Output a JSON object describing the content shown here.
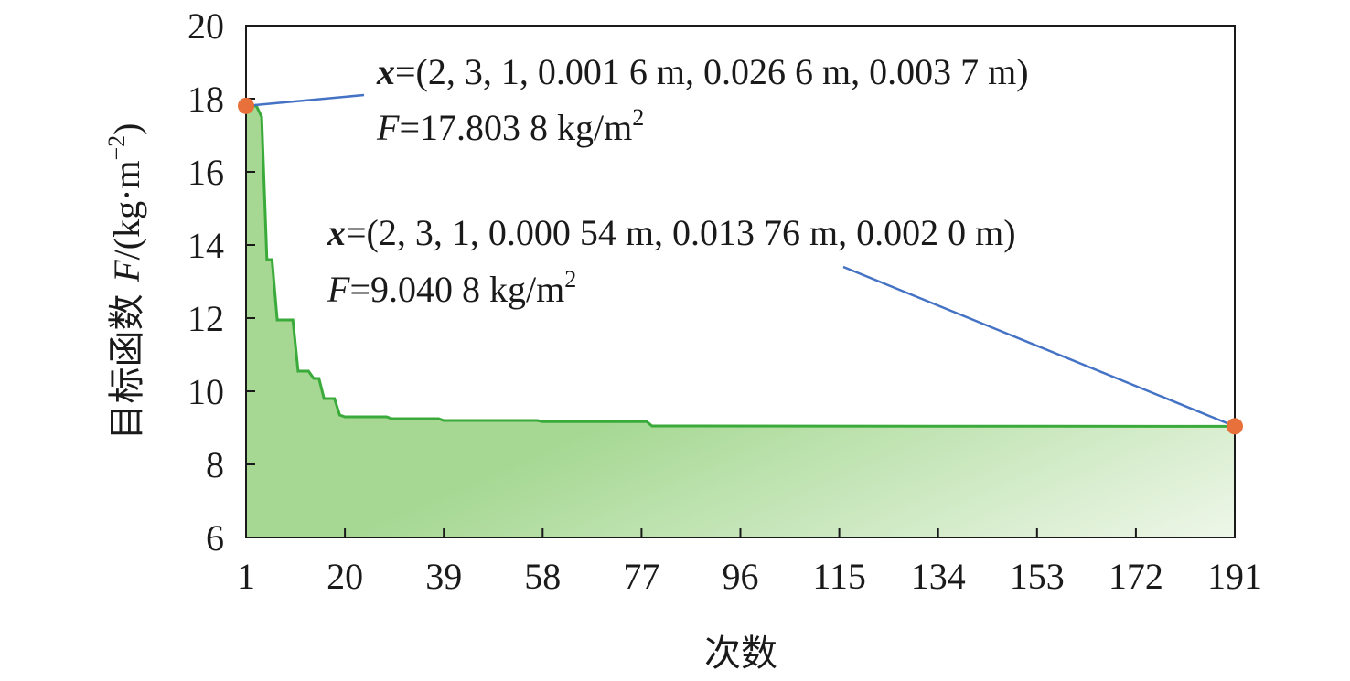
{
  "chart_data": {
    "type": "area",
    "xlabel": "次数",
    "ylabel_prefix": "目标函数 ",
    "ylabel_var": "F",
    "ylabel_unit": "/(kg·m",
    "ylabel_exp": "−2",
    "ylabel_close": ")",
    "xlim": [
      1,
      191
    ],
    "ylim": [
      6,
      20
    ],
    "xticks": [
      1,
      20,
      39,
      58,
      77,
      96,
      115,
      134,
      153,
      172,
      191
    ],
    "yticks": [
      6,
      8,
      10,
      12,
      14,
      16,
      18,
      20
    ],
    "series": [
      {
        "color": "#3aaa3a",
        "fill_top": "#a6d893",
        "fill_bottom": "#eef7e9",
        "x": [
          1,
          3,
          4,
          5,
          6,
          7,
          8,
          9,
          10,
          11,
          12,
          13,
          14,
          15,
          16,
          17,
          18,
          19,
          20,
          28,
          29,
          38,
          39,
          57,
          58,
          78,
          79,
          191
        ],
        "y": [
          17.8038,
          17.8,
          17.5,
          13.6,
          13.6,
          11.95,
          11.95,
          11.95,
          11.95,
          10.55,
          10.55,
          10.55,
          10.35,
          10.35,
          9.8,
          9.8,
          9.8,
          9.35,
          9.3,
          9.3,
          9.25,
          9.25,
          9.2,
          9.2,
          9.17,
          9.17,
          9.05,
          9.0408
        ]
      }
    ],
    "markers": [
      {
        "x": 1,
        "y": 17.8038,
        "color": "#e8703a"
      },
      {
        "x": 191,
        "y": 9.0408,
        "color": "#e8703a"
      }
    ],
    "annotations": [
      {
        "line_color": "#4472c4",
        "x_var": "x",
        "x_text": "=(2, 3, 1, 0.001 6 m, 0.026 6 m, 0.003 7 m)",
        "f_var": "F",
        "f_text": "=17.803 8 kg/m",
        "f_exp": "2"
      },
      {
        "line_color": "#4472c4",
        "x_var": "x",
        "x_text": "=(2, 3, 1, 0.000 54 m, 0.013 76 m, 0.002 0 m)",
        "f_var": "F",
        "f_text": "=9.040 8 kg/m",
        "f_exp": "2"
      }
    ]
  }
}
